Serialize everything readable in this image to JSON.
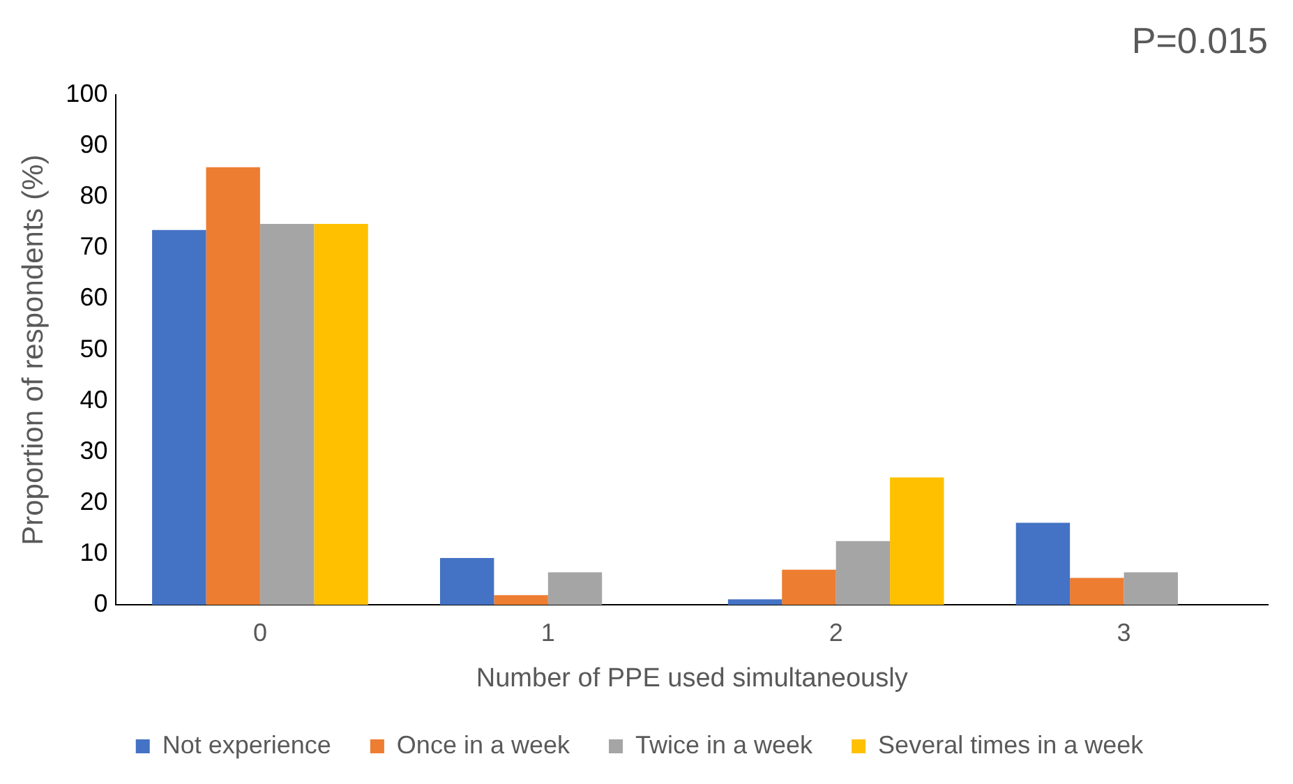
{
  "chart_data": {
    "type": "bar",
    "xlabel": "Number of PPE used simultaneously",
    "ylabel": "Proportion of respondents (%)",
    "categories": [
      "0",
      "1",
      "2",
      "3"
    ],
    "series": [
      {
        "name": "Not experience",
        "color": "#4472c4",
        "values": [
          73.5,
          9.2,
          1.1,
          16.1
        ]
      },
      {
        "name": "Once in a week",
        "color": "#ed7d31",
        "values": [
          85.8,
          1.9,
          6.9,
          5.3
        ]
      },
      {
        "name": "Twice in a week",
        "color": "#a5a5a5",
        "values": [
          74.7,
          6.4,
          12.5,
          6.4
        ]
      },
      {
        "name": "Several times in a week",
        "color": "#ffc000",
        "values": [
          74.7,
          0,
          25,
          0
        ]
      }
    ],
    "ylim": [
      0,
      100
    ],
    "yticks": [
      0,
      10,
      20,
      30,
      40,
      50,
      60,
      70,
      80,
      90,
      100
    ],
    "grid": false,
    "legend": "bottom",
    "annotations": [
      "P=0.015"
    ]
  }
}
